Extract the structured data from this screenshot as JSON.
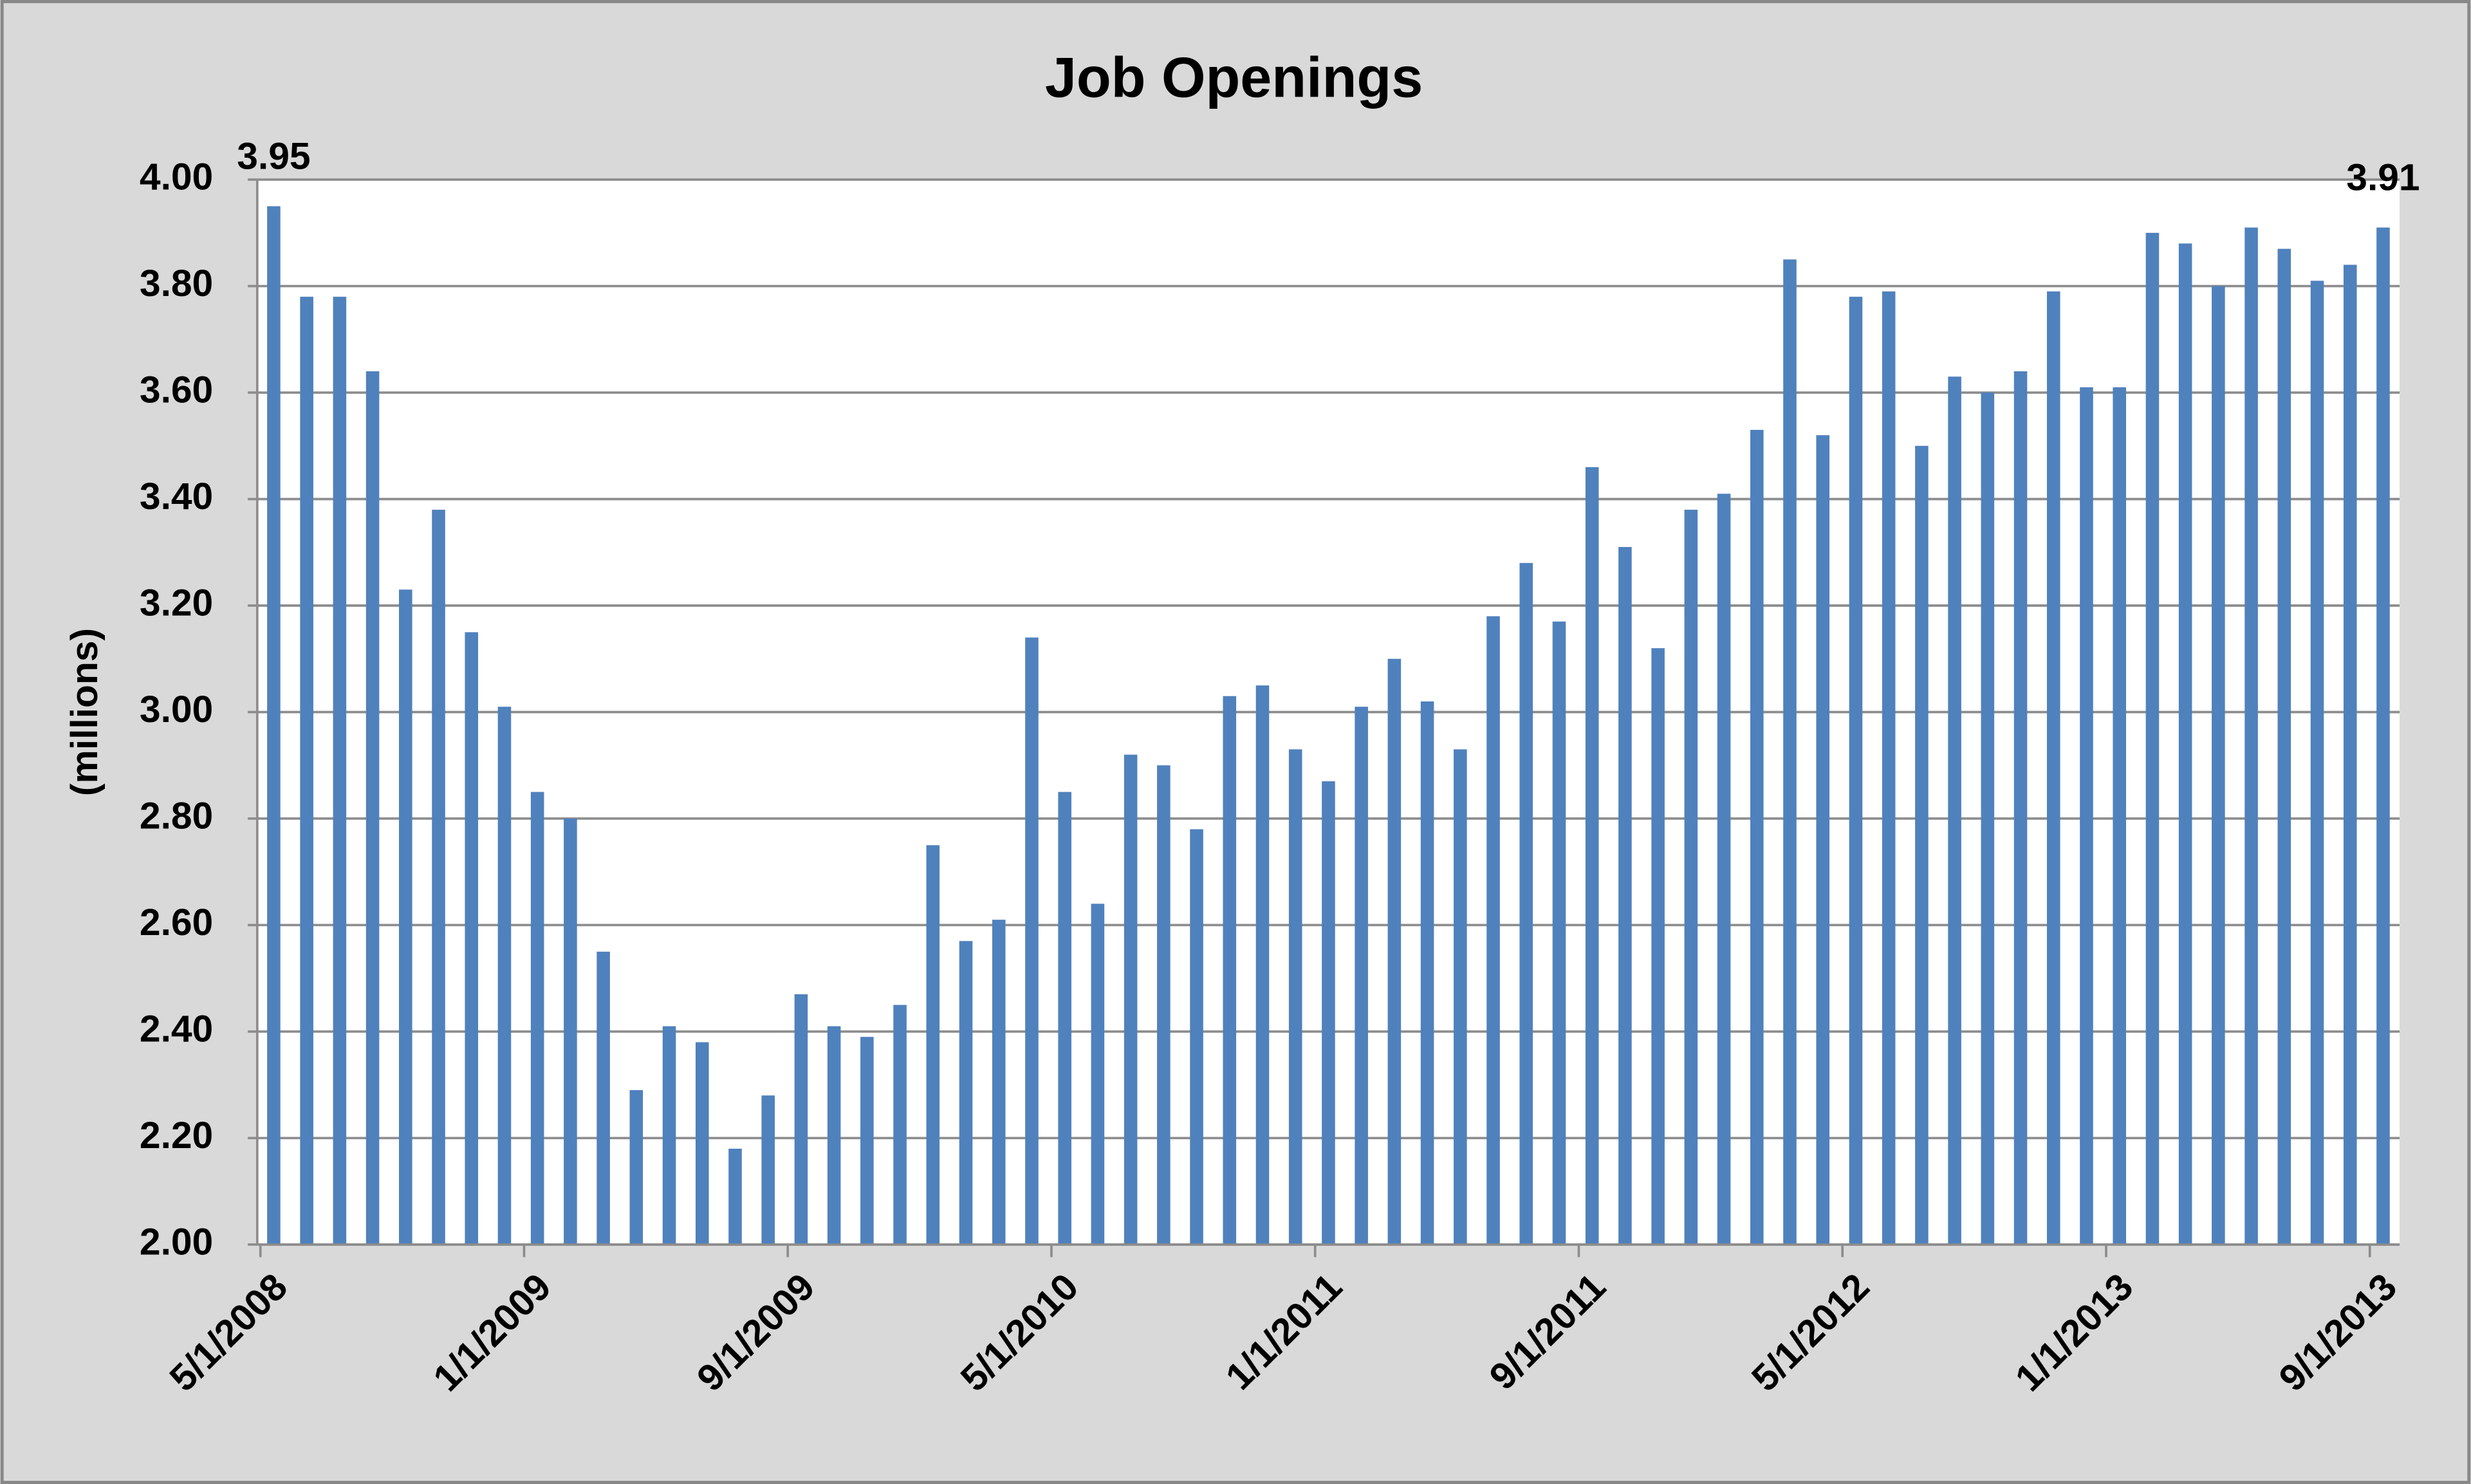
{
  "chart_data": {
    "type": "bar",
    "title": "Job Openings",
    "y_label": "(millions)",
    "categories": [
      "5/1/2008",
      null,
      null,
      null,
      null,
      null,
      null,
      null,
      "1/1/2009",
      null,
      null,
      null,
      null,
      null,
      null,
      null,
      "9/1/2009",
      null,
      null,
      null,
      null,
      null,
      null,
      null,
      "5/1/2010",
      null,
      null,
      null,
      null,
      null,
      null,
      null,
      "1/1/2011",
      null,
      null,
      null,
      null,
      null,
      null,
      null,
      "9/1/2011",
      null,
      null,
      null,
      null,
      null,
      null,
      null,
      "5/1/2012",
      null,
      null,
      null,
      null,
      null,
      null,
      null,
      "1/1/2013",
      null,
      null,
      null,
      null,
      null,
      null,
      null,
      "9/1/2013"
    ],
    "values": [
      3.95,
      3.78,
      3.78,
      3.64,
      3.23,
      3.38,
      3.15,
      3.01,
      2.85,
      2.8,
      2.55,
      2.29,
      2.41,
      2.38,
      2.18,
      2.28,
      2.47,
      2.41,
      2.39,
      2.45,
      2.75,
      2.57,
      2.61,
      3.14,
      2.85,
      2.64,
      2.92,
      2.9,
      2.78,
      3.03,
      3.05,
      2.93,
      2.87,
      3.01,
      3.1,
      3.02,
      2.93,
      3.18,
      3.28,
      3.17,
      3.46,
      3.31,
      3.12,
      3.38,
      3.41,
      3.53,
      3.85,
      3.52,
      3.78,
      3.79,
      3.5,
      3.63,
      3.6,
      3.64,
      3.79,
      3.61,
      3.61,
      3.9,
      3.88,
      3.8,
      3.91,
      3.87,
      3.81,
      3.84,
      3.91
    ],
    "value_labels": [
      "3.95",
      null,
      null,
      null,
      null,
      null,
      null,
      null,
      null,
      null,
      null,
      null,
      null,
      null,
      null,
      null,
      null,
      null,
      null,
      null,
      null,
      null,
      null,
      null,
      null,
      null,
      null,
      null,
      null,
      null,
      null,
      null,
      null,
      null,
      null,
      null,
      null,
      null,
      null,
      null,
      null,
      null,
      null,
      null,
      null,
      null,
      null,
      null,
      null,
      null,
      null,
      null,
      null,
      null,
      null,
      null,
      null,
      null,
      null,
      null,
      null,
      null,
      null,
      null,
      "3.91"
    ],
    "color": "#4f81bd",
    "ylim": [
      2,
      4
    ],
    "yticks": [
      {
        "value": 2,
        "label": "2.00"
      },
      {
        "value": 2.2,
        "label": "2.20"
      },
      {
        "value": 2.4,
        "label": "2.40"
      },
      {
        "value": 2.6,
        "label": "2.60"
      },
      {
        "value": 2.8,
        "label": "2.80"
      },
      {
        "value": 3,
        "label": "3.00"
      },
      {
        "value": 3.2,
        "label": "3.20"
      },
      {
        "value": 3.4,
        "label": "3.40"
      },
      {
        "value": 3.6,
        "label": "3.60"
      },
      {
        "value": 3.8,
        "label": "3.80"
      },
      {
        "value": 4,
        "label": "4.00"
      }
    ],
    "grid": true
  }
}
